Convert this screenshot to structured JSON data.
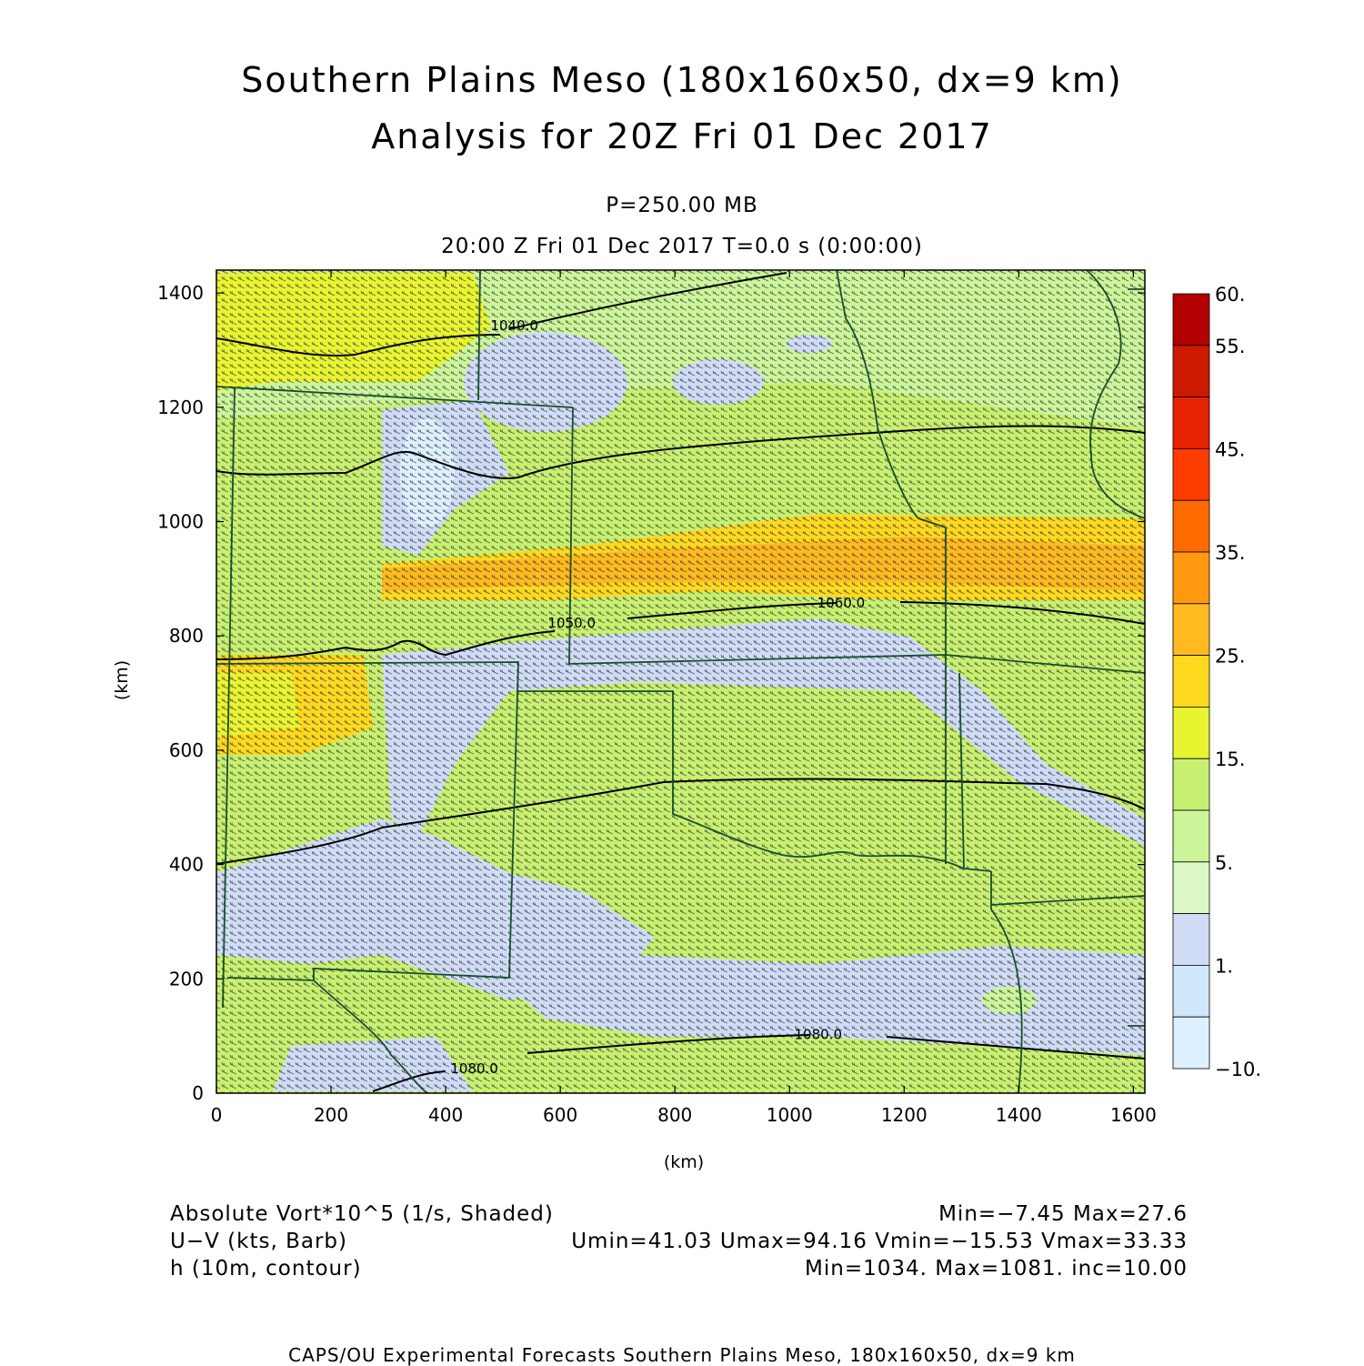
{
  "title": {
    "line1": "Southern Plains Meso (180x160x50, dx=9 km)",
    "line2": "Analysis for 20Z Fri 01 Dec 2017"
  },
  "subtitle": {
    "level": "P=250.00 MB",
    "time": "20:00 Z Fri 01 Dec 2017    T=0.0 s (0:00:00)"
  },
  "chart_data": {
    "type": "heatmap",
    "xlabel": "(km)",
    "ylabel": "(km)",
    "xlim": [
      0,
      1620
    ],
    "ylim": [
      0,
      1440
    ],
    "x_ticks": [
      "0",
      "200",
      "400",
      "600",
      "800",
      "1000",
      "1200",
      "1400",
      "1600"
    ],
    "y_ticks": [
      "0",
      "200",
      "400",
      "600",
      "800",
      "1000",
      "1200",
      "1400"
    ],
    "colorbar": {
      "labels": [
        "60.",
        "55.",
        "45.",
        "35.",
        "25.",
        "15.",
        "5.",
        "1.",
        "−10."
      ],
      "colors": [
        "#b30000",
        "#cc1a00",
        "#e62200",
        "#ff3c00",
        "#ff6a00",
        "#ff9a10",
        "#ffba20",
        "#ffd820",
        "#e8f430",
        "#c8f070",
        "#ccf59a",
        "#dcf8c4",
        "#d0dcf6",
        "#d0e6fa",
        "#ddf0ff"
      ]
    },
    "contour_labels": [
      {
        "text": "1040.0",
        "x": 520,
        "y": 1335
      },
      {
        "text": "1050.0",
        "x": 620,
        "y": 815
      },
      {
        "text": "1060.0",
        "x": 1090,
        "y": 850
      },
      {
        "text": "1080.0",
        "x": 1050,
        "y": 95
      },
      {
        "text": "1080.0",
        "x": 450,
        "y": 35
      }
    ]
  },
  "legend": {
    "field1": "Absolute Vort*10^5 (1/s, Shaded)",
    "field1_stats": "Min=−7.45 Max=27.6",
    "field2": "U−V (kts, Barb)",
    "field2_stats": "Umin=41.03 Umax=94.16 Vmin=−15.53 Vmax=33.33",
    "field3": "h (10m, contour)",
    "field3_stats": "Min=1034. Max=1081. inc=10.00"
  },
  "footer": "CAPS/OU Experimental Forecasts  Southern Plains Meso, 180x160x50, dx=9 km"
}
